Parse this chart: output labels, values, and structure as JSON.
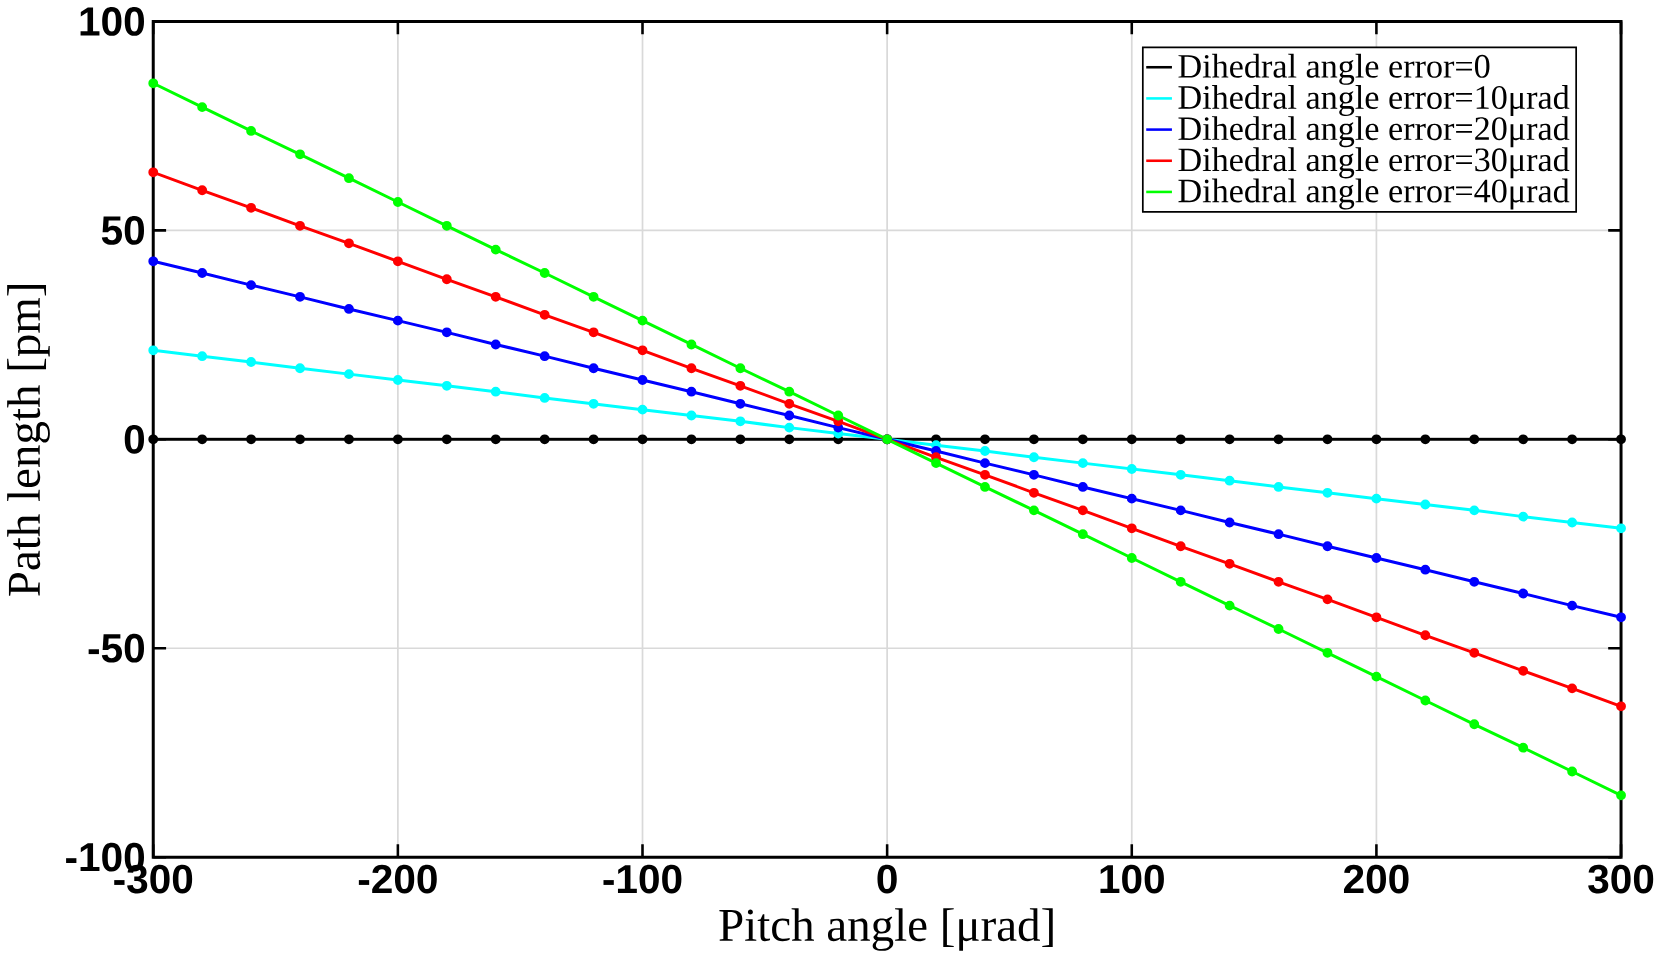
{
  "chart_data": {
    "type": "line",
    "xlabel": "Pitch angle [μrad]",
    "ylabel": "Path length [pm]",
    "x": [
      -300,
      -280,
      -260,
      -240,
      -220,
      -200,
      -180,
      -160,
      -140,
      -120,
      -100,
      -80,
      -60,
      -40,
      -20,
      0,
      20,
      40,
      60,
      80,
      100,
      120,
      140,
      160,
      180,
      200,
      220,
      240,
      260,
      280,
      300
    ],
    "series": [
      {
        "name": "Dihedral angle error=0",
        "color": "#000000",
        "values": [
          0,
          0,
          0,
          0,
          0,
          0,
          0,
          0,
          0,
          0,
          0,
          0,
          0,
          0,
          0,
          0,
          0,
          0,
          0,
          0,
          0,
          0,
          0,
          0,
          0,
          0,
          0,
          0,
          0,
          0,
          0
        ]
      },
      {
        "name": "Dihedral angle error=10μrad",
        "color": "#00ffff",
        "values": [
          21.3,
          19.9,
          18.5,
          17.0,
          15.6,
          14.2,
          12.8,
          11.4,
          9.9,
          8.5,
          7.1,
          5.7,
          4.3,
          2.8,
          1.4,
          0,
          -1.4,
          -2.8,
          -4.3,
          -5.7,
          -7.1,
          -8.5,
          -9.9,
          -11.4,
          -12.8,
          -14.2,
          -15.6,
          -17.0,
          -18.5,
          -19.9,
          -21.3
        ]
      },
      {
        "name": "Dihedral angle error=20μrad",
        "color": "#0000ff",
        "values": [
          42.6,
          39.8,
          36.9,
          34.1,
          31.2,
          28.4,
          25.6,
          22.7,
          19.9,
          17.0,
          14.2,
          11.4,
          8.5,
          5.7,
          2.8,
          0,
          -2.8,
          -5.7,
          -8.5,
          -11.4,
          -14.2,
          -17.0,
          -19.9,
          -22.7,
          -25.6,
          -28.4,
          -31.2,
          -34.1,
          -36.9,
          -39.8,
          -42.6
        ]
      },
      {
        "name": "Dihedral angle error=30μrad",
        "color": "#ff0000",
        "values": [
          63.9,
          59.6,
          55.4,
          51.1,
          46.9,
          42.6,
          38.3,
          34.1,
          29.8,
          25.6,
          21.3,
          17.0,
          12.8,
          8.5,
          4.3,
          0,
          -4.3,
          -8.5,
          -12.8,
          -17.0,
          -21.3,
          -25.6,
          -29.8,
          -34.1,
          -38.3,
          -42.6,
          -46.9,
          -51.1,
          -55.4,
          -59.6,
          -63.9
        ]
      },
      {
        "name": "Dihedral angle error=40μrad",
        "color": "#00ff00",
        "values": [
          85.2,
          79.5,
          73.8,
          68.2,
          62.5,
          56.8,
          51.1,
          45.4,
          39.8,
          34.1,
          28.4,
          22.7,
          17.0,
          11.4,
          5.7,
          0,
          -5.7,
          -11.4,
          -17.0,
          -22.7,
          -28.4,
          -34.1,
          -39.8,
          -45.4,
          -51.1,
          -56.8,
          -62.5,
          -68.2,
          -73.8,
          -79.5,
          -85.2
        ]
      }
    ],
    "xlim": [
      -300,
      300
    ],
    "xticks": [
      -300,
      -200,
      -100,
      0,
      100,
      200,
      300
    ],
    "ylim": [
      -100,
      100
    ],
    "yticks": [
      -100,
      -50,
      0,
      50,
      100
    ],
    "grid": true,
    "legend": "top right",
    "marker": "circle",
    "line_style": "solid"
  }
}
